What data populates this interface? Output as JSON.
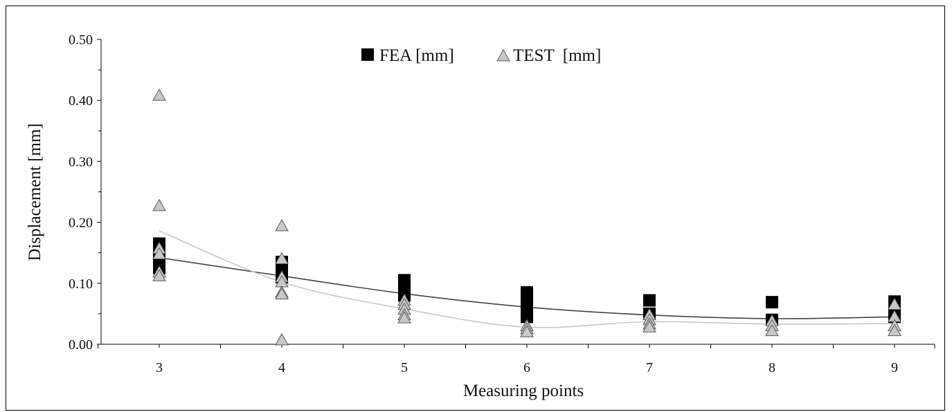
{
  "chart_data": {
    "type": "scatter",
    "title": "",
    "xlabel": "Measuring points",
    "ylabel": "Displacement [mm]",
    "x_ticks": [
      "3",
      "4",
      "5",
      "6",
      "7",
      "8",
      "9"
    ],
    "xlim": [
      3,
      9
    ],
    "ylim": [
      0,
      0.5
    ],
    "y_ticks": [
      "0.00",
      "0.10",
      "0.20",
      "0.30",
      "0.40",
      "0.50"
    ],
    "grid": false,
    "legend_position": "top-center",
    "series": [
      {
        "name": "FEA [mm]",
        "marker": "square",
        "color": "#000000",
        "points": [
          [
            3,
            0.165
          ],
          [
            3,
            0.15
          ],
          [
            3,
            0.14
          ],
          [
            3,
            0.125
          ],
          [
            4,
            0.135
          ],
          [
            4,
            0.12
          ],
          [
            4,
            0.11
          ],
          [
            5,
            0.105
          ],
          [
            5,
            0.09
          ],
          [
            5,
            0.08
          ],
          [
            6,
            0.085
          ],
          [
            6,
            0.075
          ],
          [
            6,
            0.065
          ],
          [
            6,
            0.055
          ],
          [
            6,
            0.045
          ],
          [
            7,
            0.072
          ],
          [
            7,
            0.05
          ],
          [
            8,
            0.069
          ],
          [
            8,
            0.04
          ],
          [
            9,
            0.07
          ],
          [
            9,
            0.055
          ],
          [
            9,
            0.045
          ]
        ]
      },
      {
        "name": "TEST  [mm]",
        "marker": "triangle",
        "color": "#c8c8c8",
        "points": [
          [
            3,
            0.408
          ],
          [
            3,
            0.227
          ],
          [
            3,
            0.157
          ],
          [
            3,
            0.148
          ],
          [
            3,
            0.118
          ],
          [
            3,
            0.112
          ],
          [
            4,
            0.194
          ],
          [
            4,
            0.14
          ],
          [
            4,
            0.11
          ],
          [
            4,
            0.102
          ],
          [
            4,
            0.085
          ],
          [
            4,
            0.082
          ],
          [
            4,
            0.007
          ],
          [
            5,
            0.072
          ],
          [
            5,
            0.065
          ],
          [
            5,
            0.057
          ],
          [
            5,
            0.048
          ],
          [
            5,
            0.043
          ],
          [
            6,
            0.03
          ],
          [
            6,
            0.025
          ],
          [
            6,
            0.02
          ],
          [
            7,
            0.048
          ],
          [
            7,
            0.04
          ],
          [
            7,
            0.033
          ],
          [
            7,
            0.028
          ],
          [
            8,
            0.038
          ],
          [
            8,
            0.03
          ],
          [
            8,
            0.022
          ],
          [
            9,
            0.065
          ],
          [
            9,
            0.045
          ],
          [
            9,
            0.03
          ],
          [
            9,
            0.022
          ]
        ]
      }
    ],
    "trendlines": [
      {
        "series": "FEA [mm]",
        "color": "#444444",
        "x": [
          3,
          4,
          5,
          6,
          7,
          8,
          9
        ],
        "y": [
          0.142,
          0.112,
          0.083,
          0.061,
          0.048,
          0.042,
          0.045
        ]
      },
      {
        "series": "TEST  [mm]",
        "color": "#c8c8c8",
        "x": [
          3,
          4,
          5,
          6,
          7,
          8,
          9
        ],
        "y": [
          0.186,
          0.102,
          0.058,
          0.028,
          0.037,
          0.033,
          0.034
        ]
      }
    ]
  }
}
